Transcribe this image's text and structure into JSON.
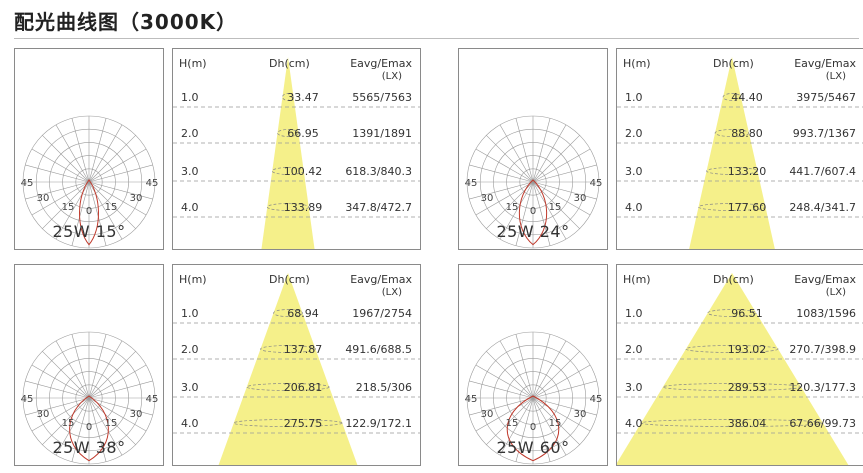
{
  "title": "配光曲线图（3000K）",
  "headers": {
    "height": "H(m)",
    "diameter": "Dh(cm)",
    "illuminance": "Eavg/Emax",
    "unit": "(LX)"
  },
  "polar_labels": {
    "deg45": "45",
    "deg30": "30",
    "deg15": "15",
    "deg0": "0"
  },
  "colors": {
    "beam": "#f5f08a",
    "curve": "#c0392b",
    "grid": "#9a9a9a"
  },
  "panels": [
    {
      "watt": "25W 15°",
      "beam_angle": 15,
      "rows": [
        {
          "h": "1.0",
          "dh": "33.47",
          "ev": "5565/7563"
        },
        {
          "h": "2.0",
          "dh": "66.95",
          "ev": "1391/1891"
        },
        {
          "h": "3.0",
          "dh": "100.42",
          "ev": "618.3/840.3"
        },
        {
          "h": "4.0",
          "dh": "133.89",
          "ev": "347.8/472.7"
        }
      ]
    },
    {
      "watt": "25W 24°",
      "beam_angle": 24,
      "rows": [
        {
          "h": "1.0",
          "dh": "44.40",
          "ev": "3975/5467"
        },
        {
          "h": "2.0",
          "dh": "88.80",
          "ev": "993.7/1367"
        },
        {
          "h": "3.0",
          "dh": "133.20",
          "ev": "441.7/607.4"
        },
        {
          "h": "4.0",
          "dh": "177.60",
          "ev": "248.4/341.7"
        }
      ]
    },
    {
      "watt": "25W 38°",
      "beam_angle": 38,
      "rows": [
        {
          "h": "1.0",
          "dh": "68.94",
          "ev": "1967/2754"
        },
        {
          "h": "2.0",
          "dh": "137.87",
          "ev": "491.6/688.5"
        },
        {
          "h": "3.0",
          "dh": "206.81",
          "ev": "218.5/306"
        },
        {
          "h": "4.0",
          "dh": "275.75",
          "ev": "122.9/172.1"
        }
      ]
    },
    {
      "watt": "25W 60°",
      "beam_angle": 60,
      "rows": [
        {
          "h": "1.0",
          "dh": "96.51",
          "ev": "1083/1596"
        },
        {
          "h": "2.0",
          "dh": "193.02",
          "ev": "270.7/398.9"
        },
        {
          "h": "3.0",
          "dh": "289.53",
          "ev": "120.3/177.3"
        },
        {
          "h": "4.0",
          "dh": "386.04",
          "ev": "67.66/99.73"
        }
      ]
    }
  ]
}
